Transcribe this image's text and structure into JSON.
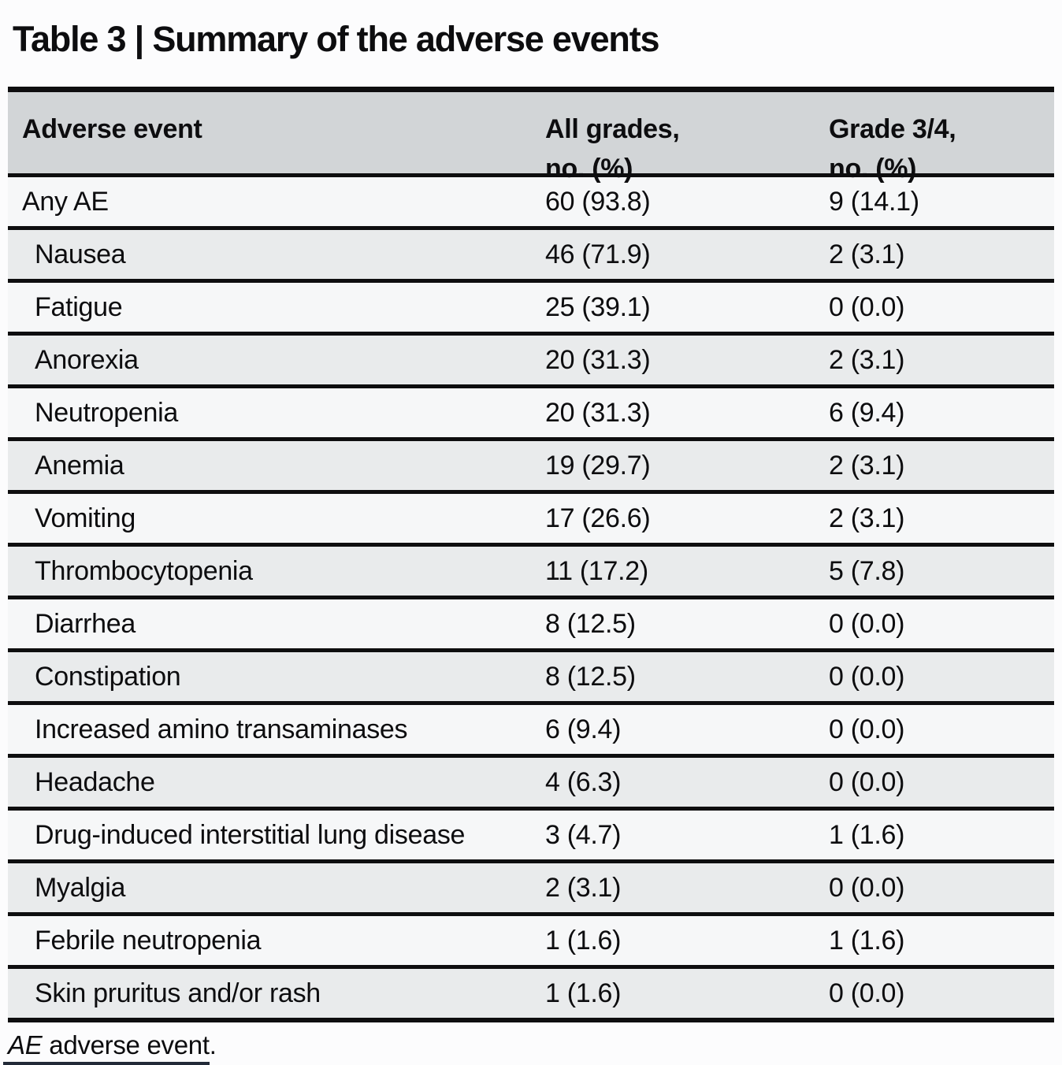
{
  "title": "Table 3 | Summary of the adverse events",
  "colors": {
    "header_bg": "#d2d5d7",
    "row_light_bg": "#f6f7f8",
    "row_shade_bg": "#e9ebec",
    "rule": "#0e0e0f"
  },
  "table": {
    "headers": {
      "event": "Adverse event",
      "all_grades": "All grades,\nno. (%)",
      "grade34": "Grade 3/4,\nno. (%)"
    },
    "rows": [
      {
        "event": "Any AE",
        "all_grades": "60 (93.8)",
        "grade34": "9 (14.1)"
      },
      {
        "event": "Nausea",
        "all_grades": "46 (71.9)",
        "grade34": "2 (3.1)"
      },
      {
        "event": "Fatigue",
        "all_grades": "25 (39.1)",
        "grade34": "0 (0.0)"
      },
      {
        "event": "Anorexia",
        "all_grades": "20 (31.3)",
        "grade34": "2 (3.1)"
      },
      {
        "event": "Neutropenia",
        "all_grades": "20 (31.3)",
        "grade34": "6 (9.4)"
      },
      {
        "event": "Anemia",
        "all_grades": "19 (29.7)",
        "grade34": "2 (3.1)"
      },
      {
        "event": "Vomiting",
        "all_grades": "17 (26.6)",
        "grade34": "2 (3.1)"
      },
      {
        "event": "Thrombocytopenia",
        "all_grades": "11 (17.2)",
        "grade34": "5 (7.8)"
      },
      {
        "event": "Diarrhea",
        "all_grades": "8 (12.5)",
        "grade34": "0 (0.0)"
      },
      {
        "event": "Constipation",
        "all_grades": "8 (12.5)",
        "grade34": "0 (0.0)"
      },
      {
        "event": "Increased amino transaminases",
        "all_grades": "6 (9.4)",
        "grade34": "0 (0.0)"
      },
      {
        "event": "Headache",
        "all_grades": "4 (6.3)",
        "grade34": "0 (0.0)"
      },
      {
        "event": "Drug-induced interstitial lung disease",
        "all_grades": "3 (4.7)",
        "grade34": "1 (1.6)"
      },
      {
        "event": "Myalgia",
        "all_grades": "2 (3.1)",
        "grade34": "0 (0.0)"
      },
      {
        "event": "Febrile neutropenia",
        "all_grades": "1 (1.6)",
        "grade34": "1 (1.6)"
      },
      {
        "event": "Skin pruritus and/or rash",
        "all_grades": "1 (1.6)",
        "grade34": "0 (0.0)"
      }
    ]
  },
  "footnote": {
    "abbr": "AE",
    "text": " adverse event."
  }
}
